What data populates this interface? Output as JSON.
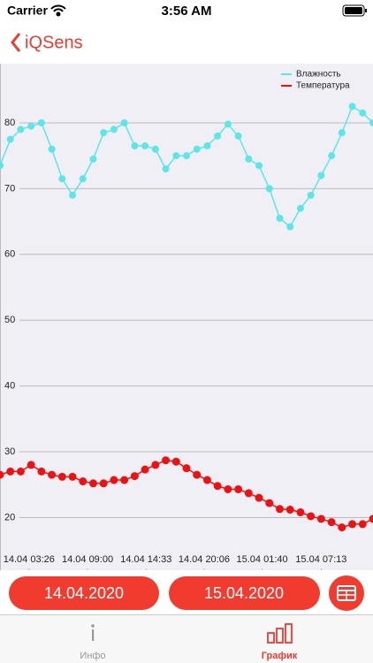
{
  "status_bar": {
    "carrier": "Carrier",
    "time": "3:56 AM"
  },
  "nav": {
    "back": "iQSens"
  },
  "chart_data": {
    "type": "line",
    "series": [
      {
        "name": "Влажность",
        "color": "#5ce6e8",
        "values": [
          73.5,
          77.5,
          79,
          79.5,
          80,
          76,
          71.5,
          69,
          71.5,
          74.5,
          78.5,
          79,
          80,
          76.5,
          76.5,
          76,
          73,
          75,
          75,
          76,
          76.5,
          78,
          79.8,
          78,
          74.5,
          73.5,
          70,
          65.5,
          64.2,
          67,
          69,
          72,
          75,
          78.5,
          82.5,
          81.5,
          80
        ]
      },
      {
        "name": "Температура",
        "color": "#ee1111",
        "values": [
          26.5,
          27,
          27,
          28,
          27,
          26.5,
          26.2,
          26.2,
          25.5,
          25.2,
          25.2,
          25.7,
          25.7,
          26.3,
          27.3,
          28,
          28.7,
          28.5,
          27.5,
          26.5,
          25.7,
          24.8,
          24.3,
          24.3,
          23.7,
          23,
          22.2,
          21.3,
          21.2,
          20.8,
          20.2,
          19.8,
          19.3,
          18.5,
          19,
          19,
          19.8
        ]
      }
    ],
    "xlim": [
      0,
      36
    ],
    "xticks": [
      {
        "value": 2.8,
        "label": "14.04 03:26"
      },
      {
        "value": 8.45,
        "label": "14.04 09:00"
      },
      {
        "value": 14.1,
        "label": "14.04 14:33"
      },
      {
        "value": 19.7,
        "label": "14.04 20:06"
      },
      {
        "value": 25.3,
        "label": "15.04 01:40"
      },
      {
        "value": 31,
        "label": "15.04 07:13"
      }
    ],
    "ylim": [
      12,
      89
    ],
    "yticks": [
      20,
      30,
      40,
      50,
      60,
      70,
      80
    ],
    "grid": true,
    "legend": "upper right"
  },
  "date_buttons": [
    "14.04.2020",
    "15.04.2020"
  ],
  "tab_bar": [
    {
      "label": "Инфо"
    },
    {
      "label": "График"
    }
  ]
}
